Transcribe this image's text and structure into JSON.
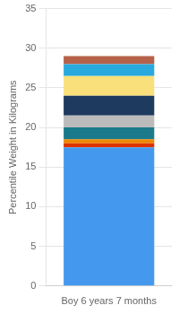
{
  "chart_data": {
    "type": "bar",
    "stacked": true,
    "categories": [
      "Boy 6 years 7 months"
    ],
    "series": [
      {
        "color": "#4499ee",
        "values": [
          17.5
        ]
      },
      {
        "color": "#dd3300",
        "values": [
          0.5
        ]
      },
      {
        "color": "#ee8800",
        "values": [
          0.5
        ]
      },
      {
        "color": "#1a7a8a",
        "values": [
          1.5
        ]
      },
      {
        "color": "#bbbbbb",
        "values": [
          1.5
        ]
      },
      {
        "color": "#1e3a5f",
        "values": [
          2.5
        ]
      },
      {
        "color": "#f9e07a",
        "values": [
          2.5
        ]
      },
      {
        "color": "#29aadf",
        "values": [
          1.5
        ]
      },
      {
        "color": "#b5624a",
        "values": [
          1.0
        ]
      }
    ],
    "ylabel": "Percentile Weight in Kilograms",
    "ylim": [
      0,
      35
    ],
    "yticks": [
      0,
      5,
      10,
      15,
      20,
      25,
      30,
      35
    ],
    "grid": true
  }
}
